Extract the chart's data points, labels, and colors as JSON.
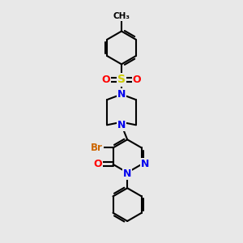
{
  "bg_color": "#e8e8e8",
  "bond_color": "#000000",
  "bond_width": 1.5,
  "atom_colors": {
    "N": "#0000ee",
    "O": "#ff0000",
    "S": "#cccc00",
    "Br": "#cc6600",
    "C": "#000000",
    "CH3": "#000000"
  },
  "font_size": 8.5
}
